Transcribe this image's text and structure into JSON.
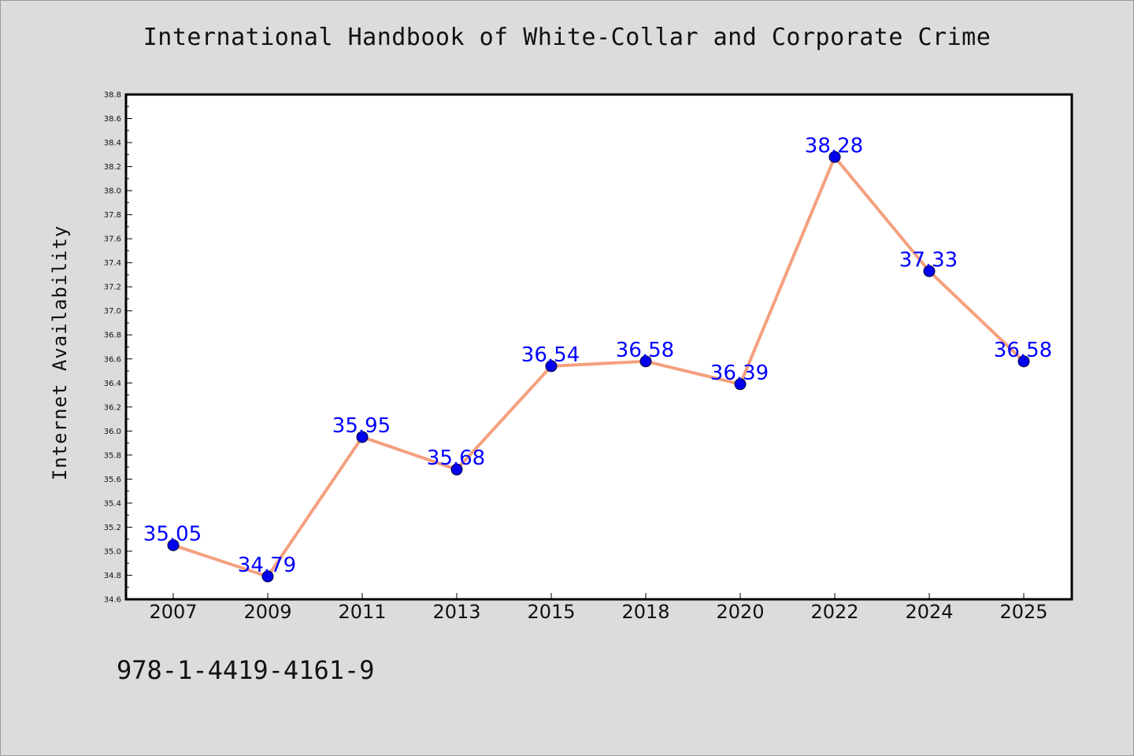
{
  "chart_data": {
    "type": "line",
    "title": "International Handbook of White-Collar and Corporate Crime",
    "ylabel": "Internet Availability",
    "xlabel": "",
    "categories": [
      "2007",
      "2009",
      "2011",
      "2013",
      "2015",
      "2018",
      "2020",
      "2022",
      "2024",
      "2025"
    ],
    "values": [
      35.05,
      34.79,
      35.95,
      35.68,
      36.54,
      36.58,
      36.39,
      38.28,
      37.33,
      36.58
    ],
    "data_labels": [
      "35.05",
      "34.79",
      "35.95",
      "35.68",
      "36.54",
      "36.58",
      "36.39",
      "38.28",
      "37.33",
      "36.58"
    ],
    "ylim": [
      34.6,
      38.8
    ],
    "yticks": [
      "34.6",
      "34.8",
      "35.0",
      "35.2",
      "35.4",
      "35.6",
      "35.8",
      "36.0",
      "36.2",
      "36.4",
      "36.6",
      "36.8",
      "37.0",
      "37.2",
      "37.4",
      "37.6",
      "37.8",
      "38.0",
      "38.2",
      "38.4",
      "38.6",
      "38.8"
    ],
    "grid": false,
    "legend": "none",
    "colors": {
      "line": "#f4a07e",
      "marker": "#0000ee",
      "data_label": "#0000ff",
      "plot_background": "#ffffff",
      "figure_background": "#dcdcdc"
    }
  },
  "footer_text": "978-1-4419-4161-9"
}
